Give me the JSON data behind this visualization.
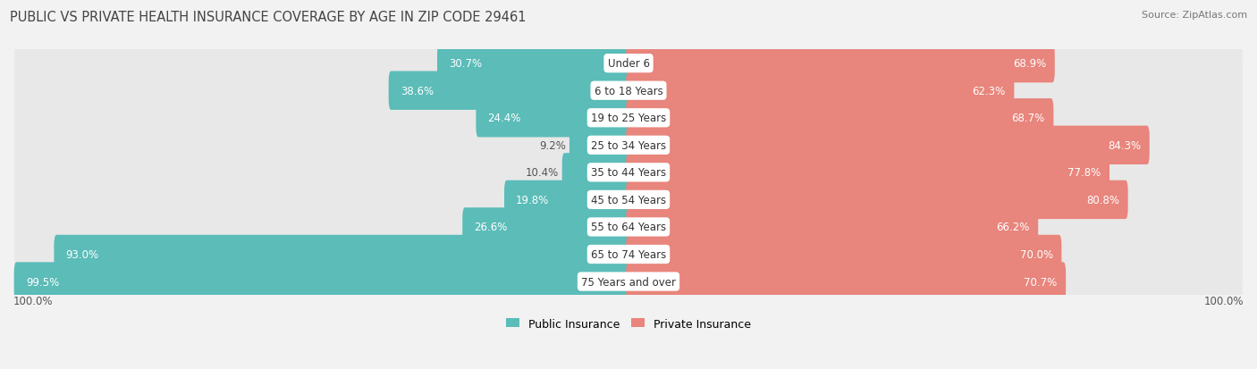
{
  "title": "PUBLIC VS PRIVATE HEALTH INSURANCE COVERAGE BY AGE IN ZIP CODE 29461",
  "source": "Source: ZipAtlas.com",
  "categories": [
    "Under 6",
    "6 to 18 Years",
    "19 to 25 Years",
    "25 to 34 Years",
    "35 to 44 Years",
    "45 to 54 Years",
    "55 to 64 Years",
    "65 to 74 Years",
    "75 Years and over"
  ],
  "public_values": [
    30.7,
    38.6,
    24.4,
    9.2,
    10.4,
    19.8,
    26.6,
    93.0,
    99.5
  ],
  "private_values": [
    68.9,
    62.3,
    68.7,
    84.3,
    77.8,
    80.8,
    66.2,
    70.0,
    70.7
  ],
  "public_color": "#5bbcb8",
  "private_color": "#e8857c",
  "background_color": "#f2f2f2",
  "row_bg_color": "#e8e8e8",
  "max_value": 100.0,
  "legend_public": "Public Insurance",
  "legend_private": "Private Insurance",
  "title_fontsize": 10.5,
  "source_fontsize": 8,
  "label_fontsize": 8.5,
  "category_fontsize": 8.5,
  "bottom_label": "100.0%"
}
